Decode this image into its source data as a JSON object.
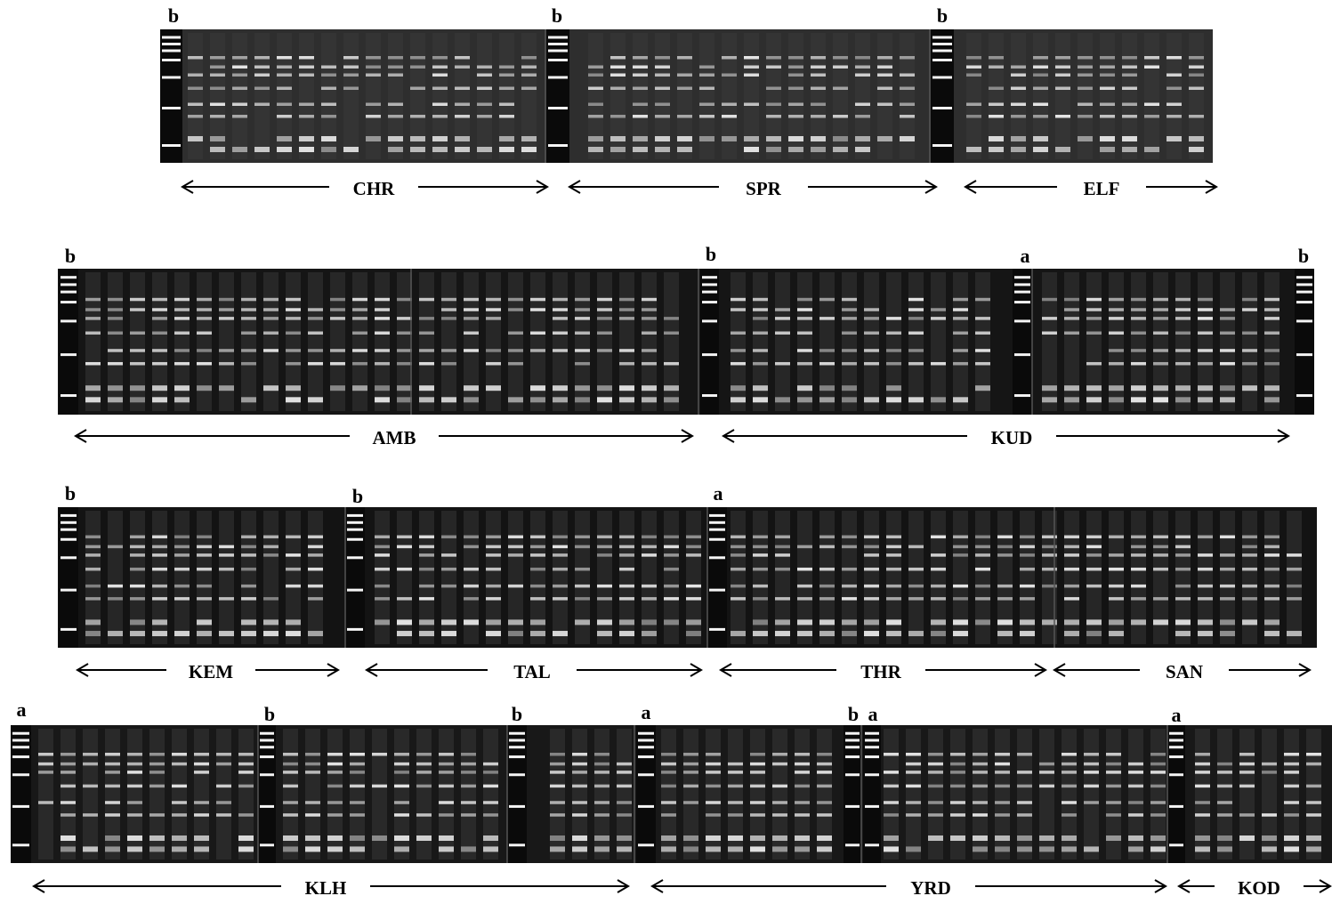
{
  "rows": [
    {
      "markers": [
        "b",
        "b",
        "b"
      ],
      "populations": [
        "CHR",
        "SPR",
        "ELF"
      ]
    },
    {
      "markers": [
        "b",
        "b",
        "a",
        "b"
      ],
      "populations": [
        "AMB",
        "KUD"
      ]
    },
    {
      "markers": [
        "b",
        "b",
        "a"
      ],
      "populations": [
        "KEM",
        "TAL",
        "THR",
        "SAN"
      ]
    },
    {
      "markers": [
        "a",
        "b",
        "b",
        "a",
        "b",
        "a",
        "a"
      ],
      "populations": [
        "KLH",
        "YRD",
        "KOD"
      ]
    }
  ]
}
